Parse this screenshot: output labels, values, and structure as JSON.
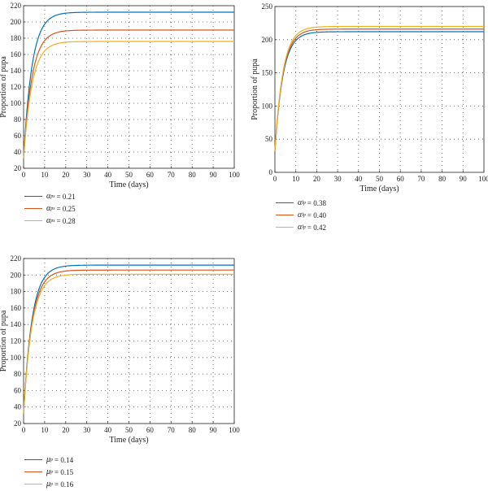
{
  "palette": {
    "blue": "#0072BD",
    "red": "#D95319",
    "yellow": "#EDB120",
    "axis": "#222222",
    "grid": "#555555"
  },
  "chart_data": [
    {
      "type": "line",
      "xlabel": "Time (days)",
      "ylabel": "Proportion of pupa",
      "xlim": [
        0,
        100
      ],
      "ylim": [
        20,
        220
      ],
      "xticks": [
        0,
        10,
        20,
        30,
        40,
        50,
        60,
        70,
        80,
        90,
        100
      ],
      "yticks": [
        20,
        40,
        60,
        80,
        100,
        120,
        140,
        160,
        180,
        200,
        220
      ],
      "grid": true,
      "legend_position": "below",
      "legend_symbol": "α",
      "legend_subscript": "ps",
      "x0": 0,
      "y0": 32,
      "rate": 0.25,
      "series": [
        {
          "name": "= 0.21",
          "plateau": 212,
          "color": "blue"
        },
        {
          "name": "= 0.25",
          "plateau": 190,
          "color": "red"
        },
        {
          "name": "= 0.28",
          "plateau": 176,
          "color": "yellow"
        }
      ]
    },
    {
      "type": "line",
      "xlabel": "Time (days)",
      "ylabel": "Proportion of pupa",
      "xlim": [
        0,
        100
      ],
      "ylim": [
        0,
        250
      ],
      "xticks": [
        0,
        10,
        20,
        30,
        40,
        50,
        60,
        70,
        80,
        90,
        100
      ],
      "yticks": [
        0,
        50,
        100,
        150,
        200,
        250
      ],
      "grid": true,
      "legend_position": "below",
      "legend_symbol": "α",
      "legend_subscript": "lp",
      "x0": 0,
      "y0": 32,
      "rate": 0.26,
      "series": [
        {
          "name": "= 0.38",
          "plateau": 212,
          "color": "blue"
        },
        {
          "name": "= 0.40",
          "plateau": 216,
          "color": "red"
        },
        {
          "name": "= 0.42",
          "plateau": 220,
          "color": "yellow"
        }
      ]
    },
    {
      "type": "line",
      "xlabel": "Time (days)",
      "ylabel": "Proportion of pupa",
      "xlim": [
        0,
        100
      ],
      "ylim": [
        20,
        220
      ],
      "xticks": [
        0,
        10,
        20,
        30,
        40,
        50,
        60,
        70,
        80,
        90,
        100
      ],
      "yticks": [
        20,
        40,
        60,
        80,
        100,
        120,
        140,
        160,
        180,
        200,
        220
      ],
      "grid": true,
      "legend_position": "below",
      "legend_symbol": "μ",
      "legend_subscript": "p",
      "x0": 0,
      "y0": 32,
      "rate": 0.25,
      "series": [
        {
          "name": "= 0.14",
          "plateau": 212,
          "color": "blue"
        },
        {
          "name": "= 0.15",
          "plateau": 206,
          "color": "red"
        },
        {
          "name": "= 0.16",
          "plateau": 201,
          "color": "yellow"
        }
      ]
    }
  ]
}
